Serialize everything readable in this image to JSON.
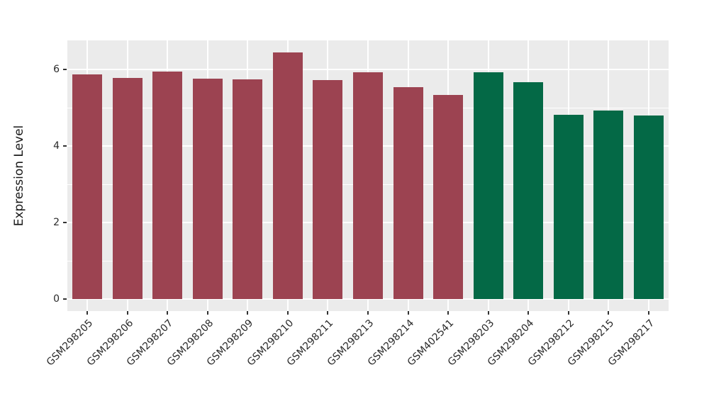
{
  "chart_data": {
    "type": "bar",
    "title": "",
    "xlabel": "",
    "ylabel": "Expression Level",
    "categories": [
      "GSM298205",
      "GSM298206",
      "GSM298207",
      "GSM298208",
      "GSM298209",
      "GSM298210",
      "GSM298211",
      "GSM298213",
      "GSM298214",
      "GSM402541",
      "GSM298203",
      "GSM298204",
      "GSM298212",
      "GSM298215",
      "GSM298217"
    ],
    "values": [
      5.87,
      5.78,
      5.94,
      5.76,
      5.74,
      6.45,
      5.73,
      5.93,
      5.53,
      5.33,
      5.92,
      5.67,
      4.81,
      4.92,
      4.79
    ],
    "groups": [
      "group1",
      "group1",
      "group1",
      "group1",
      "group1",
      "group1",
      "group1",
      "group1",
      "group1",
      "group1",
      "group2",
      "group2",
      "group2",
      "group2",
      "group2"
    ],
    "group_colors": {
      "group1": "#9C4351",
      "group2": "#046946"
    },
    "yticks": [
      0,
      2,
      4,
      6
    ],
    "minor_yticks": [
      1,
      3,
      5
    ],
    "ylim": [
      -0.31,
      6.76
    ],
    "x_label_angle": 45,
    "grid": true,
    "legend": "none",
    "panel_background": "#EBEBEB",
    "gridline_color": "#FFFFFF",
    "tick_color": "#333333",
    "text_color": "#2a2a2a"
  }
}
